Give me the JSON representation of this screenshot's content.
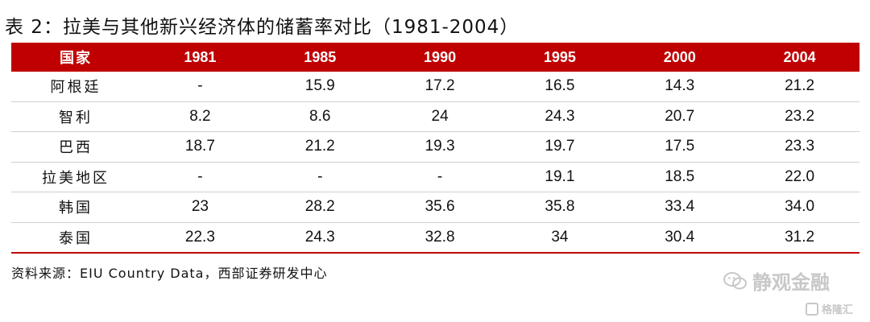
{
  "title": "表 2：拉美与其他新兴经济体的储蓄率对比（1981-2004）",
  "table": {
    "headers": [
      "国家",
      "1981",
      "1985",
      "1990",
      "1995",
      "2000",
      "2004"
    ],
    "rows": [
      {
        "label": "阿根廷",
        "values": [
          "-",
          "15.9",
          "17.2",
          "16.5",
          "14.3",
          "21.2"
        ]
      },
      {
        "label": "智利",
        "values": [
          "8.2",
          "8.6",
          "24",
          "24.3",
          "20.7",
          "23.2"
        ]
      },
      {
        "label": "巴西",
        "values": [
          "18.7",
          "21.2",
          "19.3",
          "19.7",
          "17.5",
          "23.3"
        ]
      },
      {
        "label": "拉美地区",
        "values": [
          "-",
          "-",
          "-",
          "19.1",
          "18.5",
          "22.0"
        ]
      },
      {
        "label": "韩国",
        "values": [
          "23",
          "28.2",
          "35.6",
          "35.8",
          "33.4",
          "34.0"
        ]
      },
      {
        "label": "泰国",
        "values": [
          "22.3",
          "24.3",
          "32.8",
          "34",
          "30.4",
          "31.2"
        ]
      }
    ]
  },
  "source": "资料来源：EIU Country Data，西部证券研发中心",
  "watermark": {
    "main": "静观金融",
    "secondary": "格隆汇"
  },
  "colors": {
    "header_bg": "#c00000",
    "header_text": "#ffffff",
    "watermark": "#c8c8c8"
  }
}
